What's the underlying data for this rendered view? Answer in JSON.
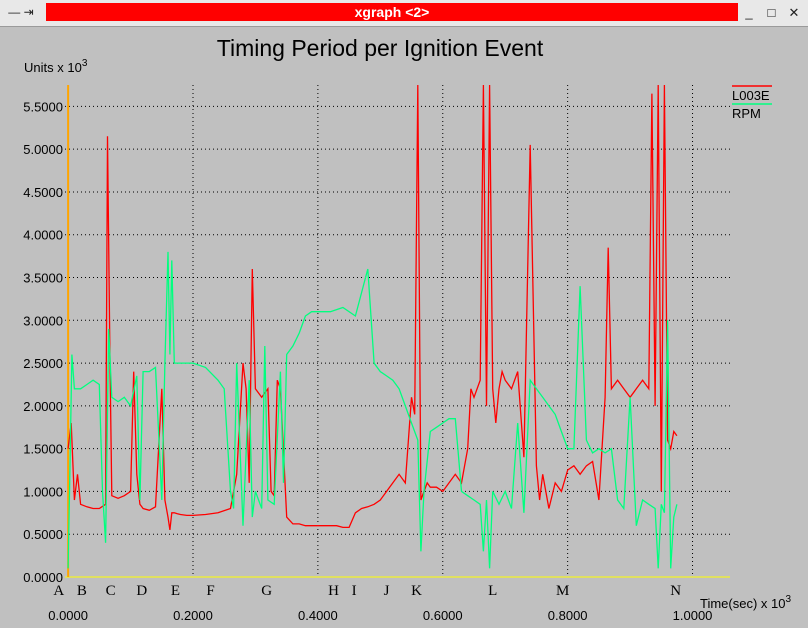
{
  "window": {
    "title": "xgraph <2>",
    "controls_left": "— ⇥",
    "minimize": "_",
    "maximize": "□",
    "close": "✕"
  },
  "chart_data": {
    "type": "line",
    "title": "Timing Period per Ignition Event",
    "ylabel": "Units x 10",
    "ylabel_exp": "3",
    "xlabel": "Time(sec) x 10",
    "xlabel_exp": "3",
    "xlim": [
      -0.005,
      1.06
    ],
    "ylim": [
      0,
      5.75
    ],
    "x_ticks": [
      "0.0000",
      "0.2000",
      "0.4000",
      "0.6000",
      "0.8000",
      "1.0000"
    ],
    "x_tick_values": [
      0,
      0.2,
      0.4,
      0.6,
      0.8,
      1.0
    ],
    "y_ticks": [
      "0.0000",
      "0.5000",
      "1.0000",
      "1.5000",
      "2.0000",
      "2.5000",
      "3.0000",
      "3.5000",
      "4.0000",
      "4.5000",
      "5.0000",
      "5.5000"
    ],
    "y_tick_values": [
      0,
      0.5,
      1.0,
      1.5,
      2.0,
      2.5,
      3.0,
      3.5,
      4.0,
      4.5,
      5.0,
      5.5
    ],
    "grid": true,
    "legend_position": "top-right",
    "annotations": [
      {
        "text": "A",
        "x": -0.015
      },
      {
        "text": "B",
        "x": 0.022
      },
      {
        "text": "C",
        "x": 0.068
      },
      {
        "text": "D",
        "x": 0.118
      },
      {
        "text": "E",
        "x": 0.172
      },
      {
        "text": "F",
        "x": 0.228
      },
      {
        "text": "G",
        "x": 0.318
      },
      {
        "text": "H",
        "x": 0.425
      },
      {
        "text": "I",
        "x": 0.458
      },
      {
        "text": "J",
        "x": 0.51
      },
      {
        "text": "K",
        "x": 0.558
      },
      {
        "text": "L",
        "x": 0.68
      },
      {
        "text": "M",
        "x": 0.792
      },
      {
        "text": "N",
        "x": 0.973
      }
    ],
    "series": [
      {
        "name": "L003E",
        "color": "#ff0000",
        "x": [
          0.0,
          0.005,
          0.01,
          0.015,
          0.02,
          0.03,
          0.04,
          0.05,
          0.06,
          0.063,
          0.067,
          0.07,
          0.08,
          0.09,
          0.1,
          0.105,
          0.11,
          0.115,
          0.12,
          0.13,
          0.14,
          0.15,
          0.155,
          0.16,
          0.163,
          0.166,
          0.17,
          0.175,
          0.18,
          0.19,
          0.2,
          0.22,
          0.24,
          0.26,
          0.27,
          0.28,
          0.285,
          0.29,
          0.295,
          0.3,
          0.31,
          0.32,
          0.325,
          0.33,
          0.335,
          0.34,
          0.35,
          0.36,
          0.37,
          0.38,
          0.39,
          0.4,
          0.41,
          0.42,
          0.43,
          0.44,
          0.45,
          0.46,
          0.47,
          0.48,
          0.49,
          0.5,
          0.51,
          0.52,
          0.53,
          0.54,
          0.55,
          0.555,
          0.56,
          0.565,
          0.57,
          0.575,
          0.58,
          0.59,
          0.6,
          0.61,
          0.62,
          0.63,
          0.64,
          0.645,
          0.65,
          0.66,
          0.665,
          0.67,
          0.675,
          0.68,
          0.685,
          0.69,
          0.695,
          0.7,
          0.71,
          0.72,
          0.73,
          0.74,
          0.75,
          0.755,
          0.76,
          0.77,
          0.78,
          0.79,
          0.8,
          0.81,
          0.82,
          0.83,
          0.84,
          0.85,
          0.86,
          0.865,
          0.87,
          0.88,
          0.89,
          0.9,
          0.91,
          0.92,
          0.93,
          0.935,
          0.94,
          0.945,
          0.95,
          0.955,
          0.96,
          0.965,
          0.97,
          0.975
        ],
        "y": [
          1.5,
          1.8,
          0.9,
          1.2,
          0.85,
          0.82,
          0.8,
          0.8,
          0.85,
          5.15,
          2.5,
          0.95,
          0.92,
          0.95,
          1.0,
          2.4,
          1.2,
          0.85,
          0.8,
          0.78,
          0.82,
          2.2,
          0.9,
          0.7,
          0.55,
          0.75,
          0.75,
          0.74,
          0.73,
          0.72,
          0.72,
          0.73,
          0.75,
          0.8,
          1.2,
          2.5,
          2.2,
          1.1,
          3.6,
          2.2,
          2.1,
          2.2,
          1.0,
          0.95,
          2.3,
          2.2,
          0.7,
          0.62,
          0.62,
          0.6,
          0.6,
          0.6,
          0.6,
          0.6,
          0.6,
          0.58,
          0.58,
          0.75,
          0.8,
          0.82,
          0.85,
          0.9,
          1.0,
          1.1,
          1.2,
          1.1,
          2.1,
          1.9,
          5.75,
          0.9,
          1.0,
          1.1,
          1.05,
          1.05,
          1.0,
          1.1,
          1.2,
          1.1,
          1.5,
          2.2,
          2.1,
          2.3,
          5.75,
          2.0,
          5.75,
          2.2,
          1.8,
          2.2,
          2.4,
          2.3,
          2.2,
          2.4,
          1.4,
          5.05,
          1.3,
          0.9,
          1.2,
          0.8,
          1.1,
          1.0,
          1.25,
          1.3,
          1.2,
          1.3,
          1.35,
          0.9,
          2.1,
          3.85,
          2.2,
          2.3,
          2.2,
          2.1,
          2.2,
          2.3,
          2.2,
          5.65,
          2.0,
          5.75,
          1.0,
          5.75,
          1.6,
          1.5,
          1.7,
          1.65
        ]
      },
      {
        "name": "RPM",
        "color": "#00ff7f",
        "x": [
          0.0,
          0.003,
          0.006,
          0.01,
          0.015,
          0.02,
          0.03,
          0.04,
          0.05,
          0.055,
          0.06,
          0.065,
          0.07,
          0.08,
          0.09,
          0.1,
          0.11,
          0.115,
          0.12,
          0.13,
          0.14,
          0.15,
          0.155,
          0.16,
          0.163,
          0.166,
          0.17,
          0.175,
          0.18,
          0.2,
          0.22,
          0.24,
          0.25,
          0.26,
          0.265,
          0.27,
          0.28,
          0.29,
          0.295,
          0.3,
          0.31,
          0.315,
          0.32,
          0.33,
          0.34,
          0.345,
          0.35,
          0.36,
          0.37,
          0.38,
          0.39,
          0.4,
          0.42,
          0.44,
          0.46,
          0.48,
          0.49,
          0.5,
          0.51,
          0.52,
          0.53,
          0.54,
          0.55,
          0.56,
          0.565,
          0.57,
          0.58,
          0.59,
          0.6,
          0.61,
          0.62,
          0.63,
          0.64,
          0.65,
          0.66,
          0.665,
          0.67,
          0.675,
          0.68,
          0.69,
          0.7,
          0.71,
          0.72,
          0.73,
          0.74,
          0.75,
          0.76,
          0.77,
          0.78,
          0.79,
          0.8,
          0.81,
          0.82,
          0.83,
          0.84,
          0.85,
          0.86,
          0.87,
          0.88,
          0.89,
          0.9,
          0.91,
          0.92,
          0.93,
          0.94,
          0.945,
          0.95,
          0.955,
          0.96,
          0.965,
          0.97,
          0.975
        ],
        "y": [
          0.1,
          1.3,
          2.6,
          2.2,
          2.2,
          2.2,
          2.25,
          2.3,
          2.25,
          1.0,
          0.4,
          2.9,
          2.1,
          2.05,
          2.1,
          2.0,
          2.35,
          0.9,
          2.4,
          2.4,
          2.45,
          0.9,
          2.5,
          3.8,
          2.6,
          3.7,
          2.5,
          2.5,
          2.5,
          2.5,
          2.45,
          2.3,
          2.2,
          1.0,
          0.8,
          2.5,
          0.6,
          2.3,
          0.7,
          1.0,
          0.8,
          2.7,
          0.9,
          0.85,
          2.4,
          1.1,
          2.6,
          2.7,
          2.85,
          3.05,
          3.1,
          3.1,
          3.1,
          3.15,
          3.05,
          3.6,
          2.5,
          2.4,
          2.35,
          2.3,
          2.2,
          2.0,
          1.8,
          1.6,
          0.3,
          1.0,
          1.7,
          1.75,
          1.8,
          1.85,
          1.85,
          1.0,
          0.95,
          0.9,
          0.85,
          0.3,
          0.9,
          0.1,
          1.0,
          0.85,
          1.0,
          0.8,
          1.8,
          0.75,
          2.3,
          2.2,
          2.1,
          2.0,
          1.9,
          1.7,
          1.5,
          1.5,
          3.4,
          1.6,
          1.45,
          1.5,
          1.45,
          1.5,
          0.9,
          0.8,
          2.1,
          0.6,
          0.9,
          0.85,
          0.8,
          0.1,
          0.85,
          0.75,
          3.0,
          0.1,
          0.7,
          0.85
        ]
      }
    ]
  }
}
